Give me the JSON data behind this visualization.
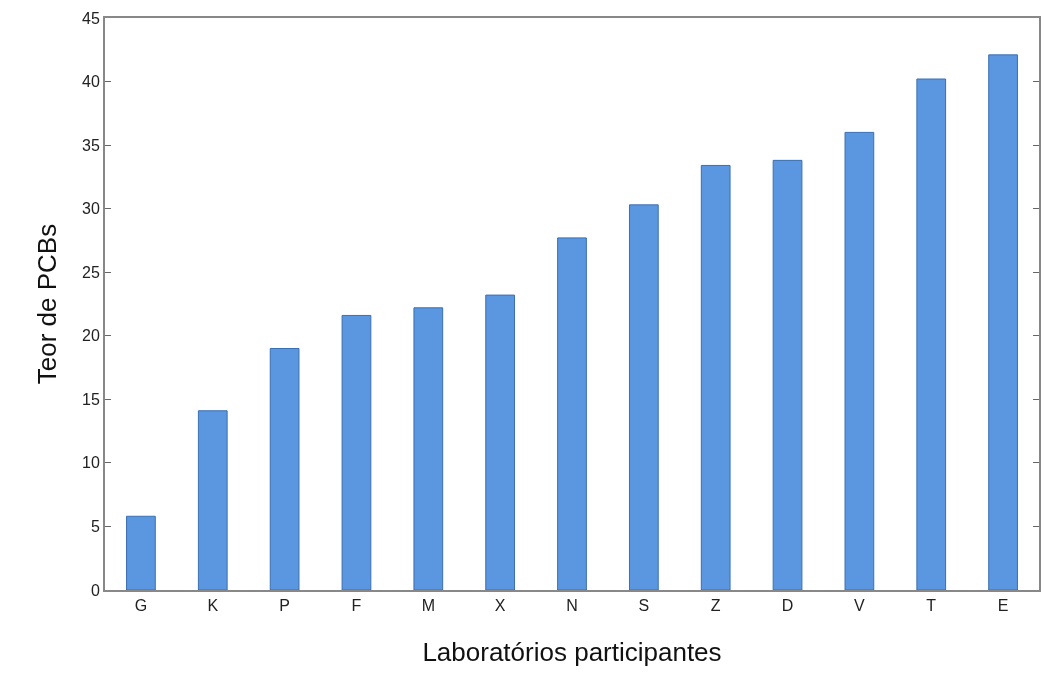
{
  "chart_data": {
    "type": "bar",
    "xlabel": "Laboratórios participantes",
    "ylabel": "Teor de PCBs",
    "categories": [
      "G",
      "K",
      "P",
      "F",
      "M",
      "X",
      "N",
      "S",
      "Z",
      "D",
      "V",
      "T",
      "E"
    ],
    "values": [
      5.8,
      14.1,
      19.0,
      21.6,
      22.2,
      23.2,
      27.7,
      30.3,
      33.4,
      33.8,
      36.0,
      40.2,
      42.1
    ],
    "color": "#5b97e0",
    "ylim": [
      0,
      45
    ],
    "yticks": [
      0,
      5,
      10,
      15,
      20,
      25,
      30,
      35,
      40,
      45
    ]
  }
}
